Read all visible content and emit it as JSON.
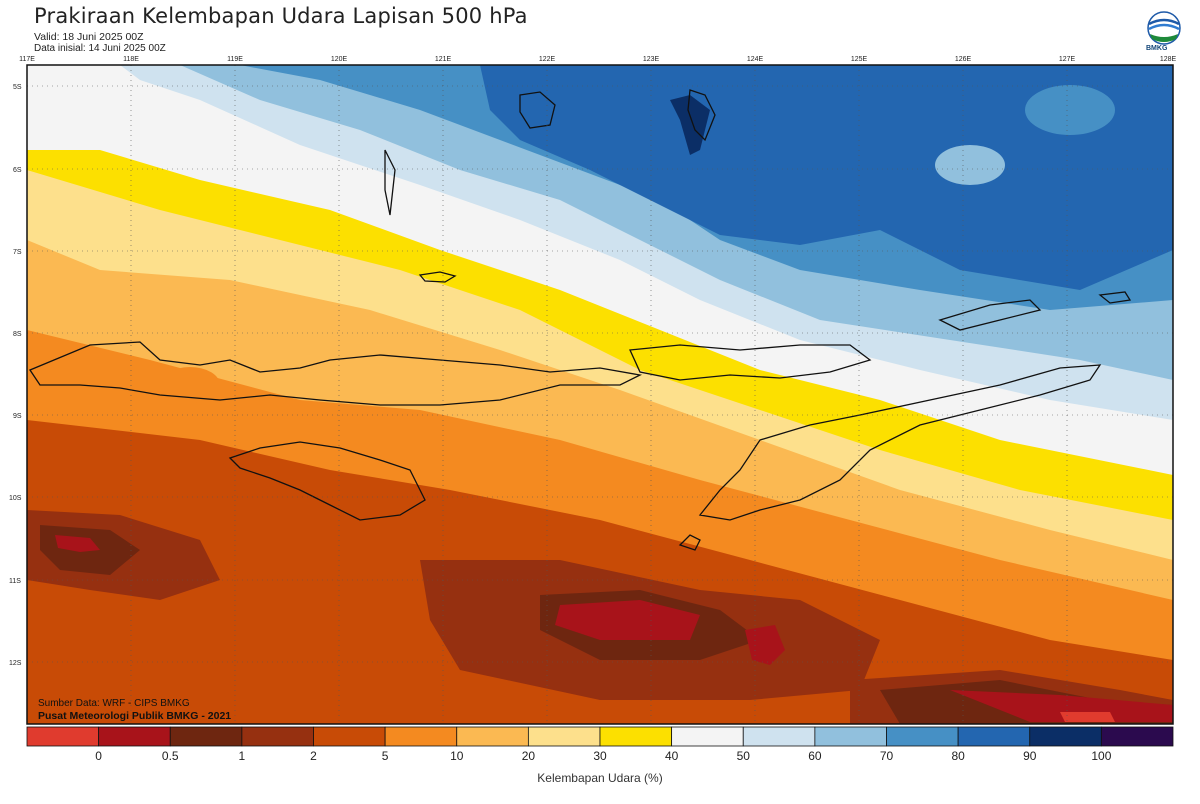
{
  "header": {
    "title": "Prakiraan Kelembapan Udara Lapisan 500 hPa",
    "valid": "Valid: 18 Juni 2025 00Z",
    "initial": "Data inisial: 14 Juni 2025 00Z"
  },
  "logo": {
    "icon": "bmkg-logo-icon",
    "text": "BMKG"
  },
  "map": {
    "lon_ticks": [
      "117E",
      "118E",
      "119E",
      "120E",
      "121E",
      "122E",
      "123E",
      "124E",
      "125E",
      "126E",
      "127E",
      "128E"
    ],
    "lat_ticks": [
      "5S",
      "6S",
      "7S",
      "8S",
      "9S",
      "10S",
      "11S",
      "12S"
    ],
    "credits": {
      "line1": "Sumber Data: WRF - CIPS BMKG",
      "line2": "Pusat Meteorologi Publik BMKG - 2021"
    }
  },
  "colorbar": {
    "xlabel": "Kelembapan Udara (%)",
    "bins": [
      {
        "color": "#e03b2e"
      },
      {
        "color": "#a8131a"
      },
      {
        "color": "#6e2610"
      },
      {
        "color": "#963010"
      },
      {
        "color": "#c84b06"
      },
      {
        "color": "#f48a20"
      },
      {
        "color": "#fbb952"
      },
      {
        "color": "#fde08c"
      },
      {
        "color": "#fce000"
      },
      {
        "color": "#f4f4f4"
      },
      {
        "color": "#cfe2ef"
      },
      {
        "color": "#91c0dd"
      },
      {
        "color": "#4690c5"
      },
      {
        "color": "#2366b0"
      },
      {
        "color": "#0b2e66"
      },
      {
        "color": "#2b0a4e"
      }
    ],
    "ticks": [
      "0",
      "0.5",
      "1",
      "2",
      "5",
      "10",
      "20",
      "30",
      "40",
      "50",
      "60",
      "70",
      "80",
      "90",
      "100"
    ]
  }
}
